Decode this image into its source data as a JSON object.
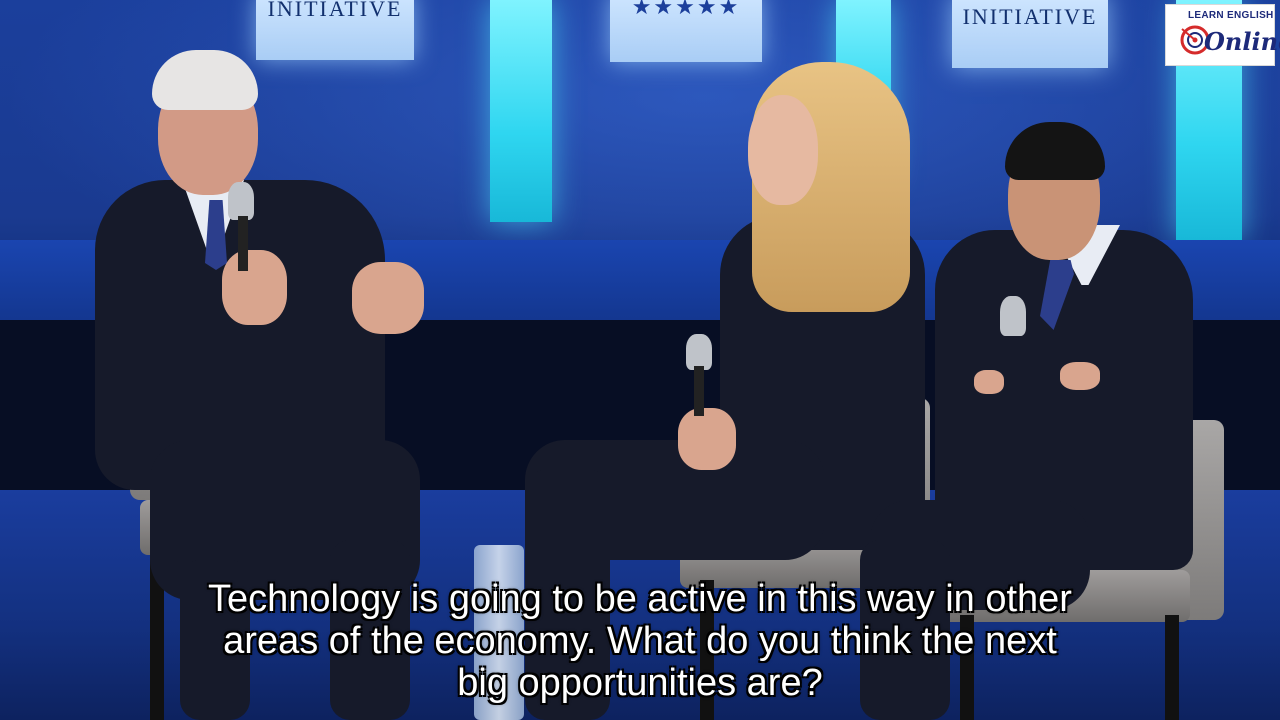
{
  "scene": {
    "backdrop_sign_left": "INITIATIVE",
    "backdrop_sign_right": "INITIATIVE",
    "backdrop_stars": "★★★★★",
    "colors": {
      "backdrop_blue": "#1a3a90",
      "light_panel_cyan": "#2fd6f0",
      "suit_dark": "#161a2a",
      "chair_grey": "#9f9c9b"
    }
  },
  "logo": {
    "top_text": "LEARN ENGLISH",
    "main_text": "Online",
    "icon": "target-icon"
  },
  "subtitles": {
    "line1": "Technology is going to be active in this way in other",
    "line2": "areas of the economy. What do you think the next",
    "line3": "big opportunities are?"
  }
}
